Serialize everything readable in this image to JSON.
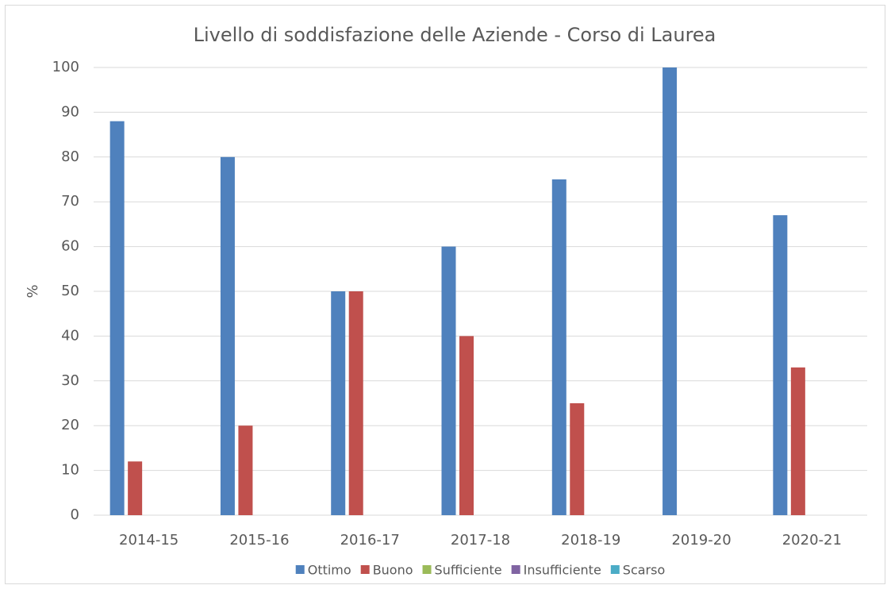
{
  "chart_data": {
    "type": "bar",
    "title": "Livello di soddisfazione delle Aziende - Corso di Laurea",
    "y_label": "%",
    "categories": [
      "2014-15",
      "2015-16",
      "2016-17",
      "2017-18",
      "2018-19",
      "2019-20",
      "2020-21"
    ],
    "series": [
      {
        "name": "Ottimo",
        "color": "#4f81bd",
        "values": [
          88,
          80,
          50,
          60,
          75,
          100,
          67
        ]
      },
      {
        "name": "Buono",
        "color": "#c0504d",
        "values": [
          12,
          20,
          50,
          40,
          25,
          0,
          33
        ]
      },
      {
        "name": "Sufficiente",
        "color": "#9bbb59",
        "values": [
          0,
          0,
          0,
          0,
          0,
          0,
          0
        ]
      },
      {
        "name": "Insufficiente",
        "color": "#8064a2",
        "values": [
          0,
          0,
          0,
          0,
          0,
          0,
          0
        ]
      },
      {
        "name": "Scarso",
        "color": "#4bacc6",
        "values": [
          0,
          0,
          0,
          0,
          0,
          0,
          0
        ]
      }
    ],
    "ylim": [
      0,
      100
    ],
    "yticks": [
      0,
      10,
      20,
      30,
      40,
      50,
      60,
      70,
      80,
      90,
      100
    ],
    "grid": true,
    "legend": "bottom"
  }
}
